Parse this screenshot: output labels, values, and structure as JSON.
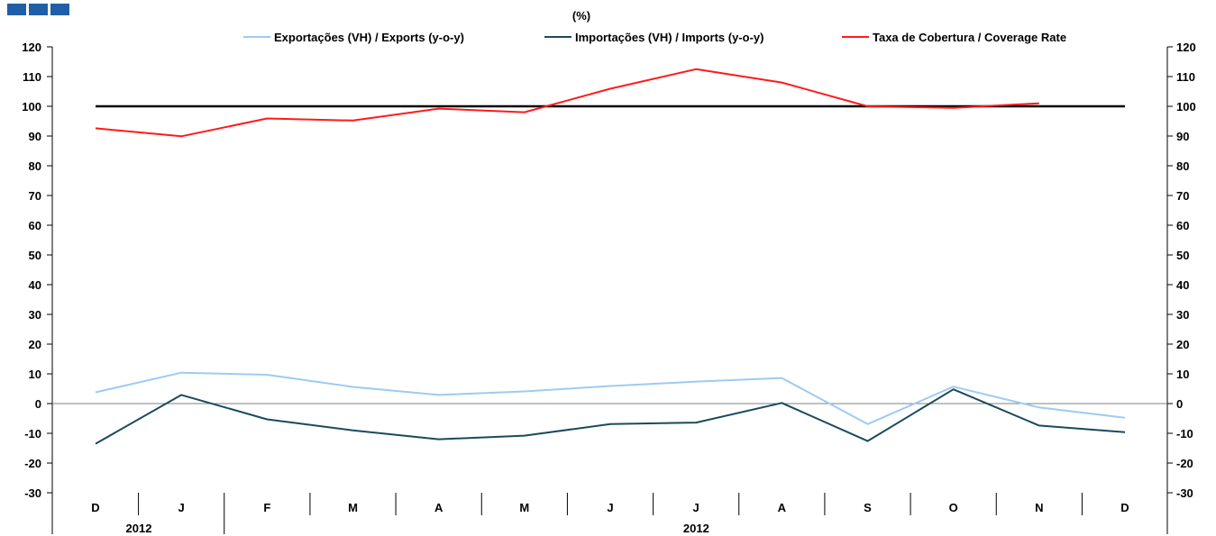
{
  "logo": {
    "name": "blue-squares-logo",
    "color": "#1f5fa8"
  },
  "chart_data": {
    "type": "line",
    "title": "(%)",
    "categories": [
      "D",
      "J",
      "F",
      "M",
      "A",
      "M",
      "J",
      "J",
      "A",
      "S",
      "O",
      "N",
      "D"
    ],
    "year_labels": [
      "2012",
      "2012"
    ],
    "ylim": [
      -30,
      120
    ],
    "yticks": [
      -30,
      -20,
      -10,
      0,
      10,
      20,
      30,
      40,
      50,
      60,
      70,
      80,
      90,
      100,
      110,
      120
    ],
    "secondary_axis": true,
    "legend_position": "top",
    "reference_line": {
      "value": 100,
      "color": "#000000"
    },
    "series": [
      {
        "name": "Exportações (VH) / Exports (y-o-y)",
        "color": "#9ecbf0",
        "values": [
          3.8,
          10.4,
          9.7,
          5.6,
          2.9,
          4.1,
          5.9,
          7.4,
          8.6,
          -6.9,
          5.7,
          -1.3,
          -4.8
        ]
      },
      {
        "name": "Importações (VH) / Imports (y-o-y)",
        "color": "#1b4a5c",
        "values": [
          -13.5,
          2.9,
          -5.3,
          -9.0,
          -12.0,
          -10.8,
          -6.9,
          -6.4,
          0.2,
          -12.6,
          4.8,
          -7.4,
          -9.6
        ]
      },
      {
        "name": "Taxa de Cobertura / Coverage Rate",
        "color": "#ff1a1a",
        "values": [
          92.6,
          89.9,
          95.9,
          95.2,
          99.2,
          98.0,
          105.9,
          112.5,
          108.0,
          100.0,
          99.5,
          101.0,
          null
        ]
      }
    ]
  }
}
